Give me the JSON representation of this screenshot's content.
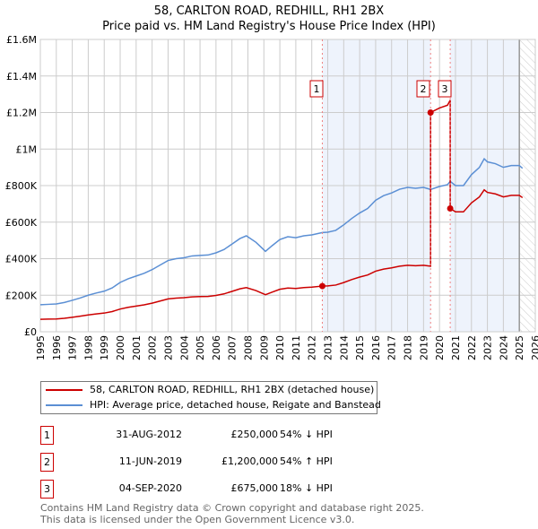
{
  "title_line1": "58, CARLTON ROAD, REDHILL, RH1 2BX",
  "title_line2": "Price paid vs. HM Land Registry's House Price Index (HPI)",
  "chart_data": {
    "type": "line",
    "title": "58, CARLTON ROAD, REDHILL, RH1 2BX — Price paid vs. HM Land Registry's House Price Index (HPI)",
    "xlim": [
      1995,
      2026
    ],
    "ylim": [
      0,
      1600000
    ],
    "x_ticks": [
      "1995",
      "1996",
      "1997",
      "1998",
      "1999",
      "2000",
      "2001",
      "2002",
      "2003",
      "2004",
      "2005",
      "2006",
      "2007",
      "2008",
      "2009",
      "2010",
      "2011",
      "2012",
      "2013",
      "2014",
      "2015",
      "2016",
      "2017",
      "2018",
      "2019",
      "2020",
      "2021",
      "2022",
      "2023",
      "2024",
      "2025",
      "2026"
    ],
    "y_ticks": [
      {
        "v": 0,
        "label": "£0"
      },
      {
        "v": 200000,
        "label": "£200K"
      },
      {
        "v": 400000,
        "label": "£400K"
      },
      {
        "v": 600000,
        "label": "£600K"
      },
      {
        "v": 800000,
        "label": "£800K"
      },
      {
        "v": 1000000,
        "label": "£1M"
      },
      {
        "v": 1200000,
        "label": "£1.2M"
      },
      {
        "v": 1400000,
        "label": "£1.4M"
      },
      {
        "v": 1600000,
        "label": "£1.6M"
      }
    ],
    "grid": true,
    "forecast_from": 2025.0,
    "series": [
      {
        "name": "58, CARLTON ROAD, REDHILL, RH1 2BX (detached house)",
        "color": "#cc0000"
      },
      {
        "name": "HPI: Average price, detached house, Reigate and Banstead",
        "color": "#5b8fd4",
        "x": [
          1995,
          1995.5,
          1996,
          1996.5,
          1997,
          1997.5,
          1998,
          1998.5,
          1999,
          1999.5,
          2000,
          2000.5,
          2001,
          2001.5,
          2002,
          2002.5,
          2003,
          2003.5,
          2004,
          2004.5,
          2005,
          2005.5,
          2006,
          2006.5,
          2007,
          2007.5,
          2007.9,
          2008.5,
          2009.1,
          2009.5,
          2010,
          2010.5,
          2011,
          2011.5,
          2012,
          2012.66,
          2013,
          2013.5,
          2014,
          2014.5,
          2015,
          2015.5,
          2016,
          2016.5,
          2017,
          2017.5,
          2018,
          2018.5,
          2019,
          2019.44,
          2020,
          2020.5,
          2020.67,
          2021,
          2021.5,
          2022,
          2022.5,
          2022.8,
          2023,
          2023.5,
          2024,
          2024.5,
          2025,
          2025.2
        ],
        "y": [
          148000,
          150000,
          152000,
          160000,
          172000,
          185000,
          200000,
          212000,
          222000,
          240000,
          270000,
          290000,
          305000,
          320000,
          340000,
          365000,
          390000,
          400000,
          405000,
          415000,
          418000,
          420000,
          432000,
          450000,
          480000,
          510000,
          525000,
          490000,
          440000,
          470000,
          505000,
          520000,
          515000,
          525000,
          530000,
          543000,
          545000,
          555000,
          585000,
          620000,
          650000,
          675000,
          720000,
          745000,
          760000,
          780000,
          790000,
          785000,
          790000,
          779000,
          795000,
          805000,
          823000,
          800000,
          800000,
          860000,
          900000,
          947000,
          930000,
          920000,
          900000,
          910000,
          910000,
          895000
        ]
      }
    ],
    "sales": [
      {
        "id": "1",
        "x": 2012.66,
        "date": "31-AUG-2012",
        "price": 250000,
        "price_label": "£250,000",
        "hpi_label": "54% ↓ HPI"
      },
      {
        "id": "2",
        "x": 2019.44,
        "date": "11-JUN-2019",
        "price": 1200000,
        "price_label": "£1,200,000",
        "hpi_label": "54% ↑ HPI"
      },
      {
        "id": "3",
        "x": 2020.67,
        "date": "04-SEP-2020",
        "price": 675000,
        "price_label": "£675,000",
        "hpi_label": "18% ↓ HPI"
      }
    ]
  },
  "legend": {
    "red": "58, CARLTON ROAD, REDHILL, RH1 2BX (detached house)",
    "blue": "HPI: Average price, detached house, Reigate and Banstead"
  },
  "footer": {
    "line1": "Contains HM Land Registry data © Crown copyright and database right 2025.",
    "line2": "This data is licensed under the Open Government Licence v3.0."
  }
}
